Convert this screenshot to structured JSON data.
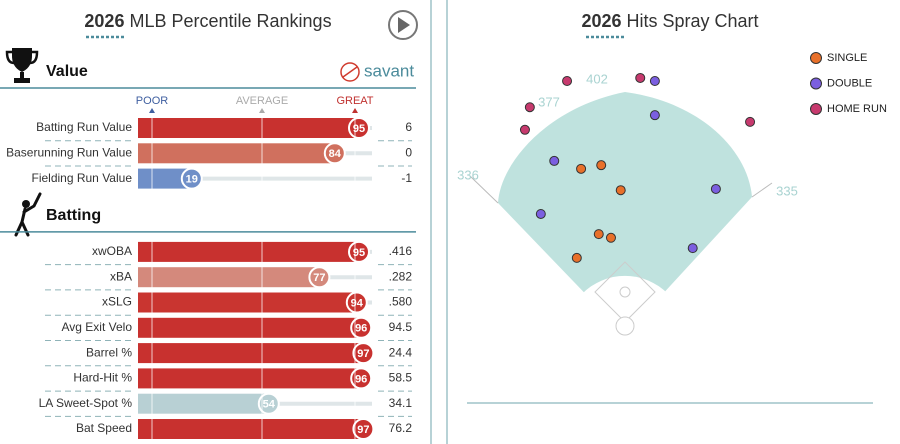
{
  "percentile_panel": {
    "year": "2026",
    "title": "MLB Percentile Rankings",
    "logo": "savant",
    "scale": [
      "POOR",
      "AVERAGE",
      "GREAT"
    ],
    "sections": [
      {
        "name": "Value",
        "rows": [
          {
            "label": "Batting Run Value",
            "percentile": 95,
            "stat": "6",
            "color": "#c8312f"
          },
          {
            "label": "Baserunning Run Value",
            "percentile": 84,
            "stat": "0",
            "color": "#d0705e"
          },
          {
            "label": "Fielding Run Value",
            "percentile": 19,
            "stat": "-1",
            "color": "#6f8fc8"
          }
        ]
      },
      {
        "name": "Batting",
        "rows": [
          {
            "label": "xwOBA",
            "percentile": 95,
            "stat": ".416",
            "color": "#c8312f"
          },
          {
            "label": "xBA",
            "percentile": 77,
            "stat": ".282",
            "color": "#d4897c"
          },
          {
            "label": "xSLG",
            "percentile": 94,
            "stat": ".580",
            "color": "#c93530"
          },
          {
            "label": "Avg Exit Velo",
            "percentile": 96,
            "stat": "94.5",
            "color": "#c8312f"
          },
          {
            "label": "Barrel %",
            "percentile": 97,
            "stat": "24.4",
            "color": "#c8312f"
          },
          {
            "label": "Hard-Hit %",
            "percentile": 96,
            "stat": "58.5",
            "color": "#c8312f"
          },
          {
            "label": "LA Sweet-Spot %",
            "percentile": 54,
            "stat": "34.1",
            "color": "#b8d0d4"
          },
          {
            "label": "Bat Speed",
            "percentile": 97,
            "stat": "76.2",
            "color": "#c8312f"
          }
        ]
      }
    ]
  },
  "spray_panel": {
    "year": "2026",
    "title": "Hits Spray Chart",
    "fence_distances": [
      402,
      377,
      336,
      335
    ],
    "series": [
      {
        "name": "SINGLE",
        "color": "#e8702a",
        "x": [
          -72,
          -39,
          -7,
          -43,
          -23,
          -79
        ],
        "y": [
          256,
          262,
          221,
          149,
          143,
          110
        ]
      },
      {
        "name": "DOUBLE",
        "color": "#7b5fe0",
        "x": [
          49,
          49,
          -116,
          149,
          -138,
          111
        ],
        "y": [
          400,
          344,
          269,
          223,
          182,
          126
        ]
      },
      {
        "name": "HOME RUN",
        "color": "#c73a6e",
        "x": [
          -95,
          25,
          -156,
          -164,
          205
        ],
        "y": [
          400,
          405,
          357,
          320,
          333
        ]
      }
    ]
  }
}
